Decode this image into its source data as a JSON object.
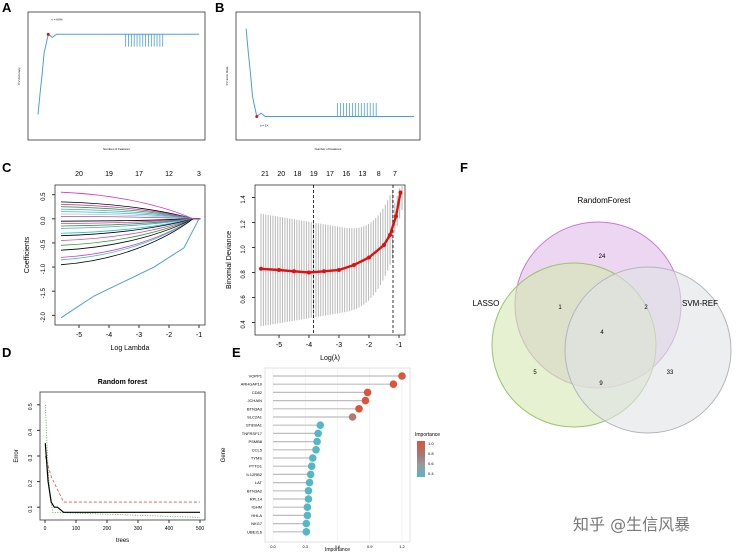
{
  "panels": {
    "A": "A",
    "B": "B",
    "C": "C",
    "D": "D",
    "E": "E",
    "F": "F"
  },
  "panel_A": {
    "min_label": "n = 6X%",
    "xlabel": "Number of Features",
    "ylabel": "CV Accuracy"
  },
  "panel_B": {
    "min_label": "n = 1X",
    "xlabel": "Number of Features",
    "ylabel": "CV Error Rate"
  },
  "panel_C1": {
    "xlabel": "Log Lambda",
    "ylabel": "Coefficients",
    "xticks": [
      "-5",
      "-4",
      "-3",
      "-2",
      "-1"
    ],
    "yticks": [
      "0.5",
      "0.0",
      "-0.5",
      "-1.0",
      "-1.5",
      "-2.0"
    ],
    "top_counts": [
      "20",
      "19",
      "17",
      "12",
      "3"
    ]
  },
  "panel_C2": {
    "xlabel": "Log(λ)",
    "ylabel": "Binomial Deviance",
    "xticks": [
      "-5",
      "-4",
      "-3",
      "-2",
      "-1"
    ],
    "yticks": [
      "1.4",
      "1.2",
      "1.0",
      "0.8",
      "0.6",
      "0.4"
    ],
    "top_counts": [
      "21",
      "20",
      "18",
      "19",
      "17",
      "16",
      "13",
      "8",
      "7"
    ]
  },
  "panel_D": {
    "title": "Random forest",
    "xlabel": "trees",
    "ylabel": "Error",
    "xticks": [
      "0",
      "100",
      "200",
      "300",
      "400",
      "500"
    ],
    "yticks": [
      "0.5",
      "0.4",
      "0.3",
      "0.2",
      "0.1"
    ]
  },
  "panel_E": {
    "xlabel": "Importance",
    "ylabel": "Gene",
    "legend_title": "Importance",
    "xticks": [
      "0.0",
      "0.3",
      "0.6",
      "0.9",
      "1.2"
    ],
    "legend_values": [
      "1.0",
      "0.8",
      "0.6",
      "0.4"
    ]
  },
  "panel_F": {
    "set_labels": [
      "RandomForest",
      "LASSO",
      "SVM-REF"
    ]
  },
  "colors": {
    "blue": "#4a9fd6",
    "red": "#e01010",
    "green": "#d4e8b0",
    "purple": "#e6c8ec",
    "gray": "#dfe3e6",
    "dot_red": "#d9553b",
    "dot_teal": "#55b6c6"
  },
  "chart_data": [
    {
      "type": "line",
      "panel": "A",
      "xlim": [
        0,
        80
      ],
      "series": [
        {
          "x": [
            1,
            2,
            3,
            4,
            5,
            6,
            8,
            10,
            15,
            20,
            30,
            40,
            50,
            60,
            80
          ],
          "y": [
            0.55,
            0.62,
            0.68,
            0.75,
            0.78,
            0.81,
            0.8,
            0.81,
            0.81,
            0.81,
            0.81,
            0.81,
            0.81,
            0.81,
            0.81
          ]
        }
      ]
    },
    {
      "type": "line",
      "panel": "B",
      "xlim": [
        0,
        80
      ],
      "series": [
        {
          "x": [
            1,
            2,
            3,
            4,
            5,
            6,
            8,
            10,
            15,
            20,
            30,
            40,
            50,
            60,
            80
          ],
          "y": [
            0.45,
            0.38,
            0.32,
            0.25,
            0.22,
            0.19,
            0.2,
            0.19,
            0.19,
            0.19,
            0.19,
            0.19,
            0.19,
            0.19,
            0.19
          ]
        }
      ]
    },
    {
      "type": "line",
      "panel": "C1",
      "xlabel": "Log Lambda",
      "ylabel": "Coefficients",
      "xlim": [
        -5.8,
        -0.8
      ],
      "ylim": [
        -2.2,
        0.7
      ],
      "series_count": 21,
      "example_series": {
        "x": [
          -5.6,
          -4.5,
          -3.5,
          -2.5,
          -1.5,
          -1.0
        ],
        "y": [
          -2.05,
          -1.6,
          -1.3,
          -1.0,
          -0.6,
          0.0
        ]
      }
    },
    {
      "type": "scatter",
      "panel": "C2",
      "xlabel": "Log(λ)",
      "ylabel": "Binomial Deviance",
      "xlim": [
        -5.8,
        -0.8
      ],
      "ylim": [
        0.3,
        1.5
      ],
      "x": [
        -5.6,
        -5.0,
        -4.5,
        -4.0,
        -3.5,
        -3.0,
        -2.5,
        -2.0,
        -1.5,
        -1.3,
        -1.1,
        -0.95
      ],
      "y": [
        0.83,
        0.82,
        0.81,
        0.8,
        0.81,
        0.82,
        0.86,
        0.92,
        1.02,
        1.1,
        1.25,
        1.44
      ],
      "vlines": [
        -3.85,
        -1.2
      ]
    },
    {
      "type": "line",
      "panel": "D",
      "title": "Random forest",
      "xlabel": "trees",
      "ylabel": "Error",
      "xlim": [
        0,
        500
      ],
      "ylim": [
        0.05,
        0.55
      ],
      "series": [
        {
          "name": "OOB",
          "x": [
            1,
            10,
            20,
            30,
            40,
            60,
            100,
            200,
            300,
            400,
            500
          ],
          "y": [
            0.35,
            0.2,
            0.12,
            0.1,
            0.1,
            0.08,
            0.08,
            0.08,
            0.08,
            0.08,
            0.08
          ]
        }
      ]
    },
    {
      "type": "bar",
      "panel": "E",
      "xlabel": "Importance",
      "categories": [
        "VOPP1",
        "ARHGAP10",
        "CD82",
        "JCHAIN",
        "BTN3A3",
        "SLC2A1",
        "ST8SIA1",
        "TNFRSF17",
        "PSMB8",
        "CCL5",
        "TYMS",
        "PTTG1",
        "IL12RB2",
        "LAT",
        "BTN3A2",
        "RPL14",
        "IGHM",
        "HHLA",
        "NKG7",
        "UBE2L6"
      ],
      "values": [
        1.2,
        1.12,
        0.88,
        0.86,
        0.8,
        0.74,
        0.44,
        0.42,
        0.41,
        0.4,
        0.37,
        0.36,
        0.35,
        0.34,
        0.33,
        0.33,
        0.32,
        0.32,
        0.31,
        0.31
      ]
    },
    {
      "type": "table",
      "panel": "F",
      "venn": {
        "RandomForest_only": 24,
        "LASSO_only": 5,
        "SVM-REF_only": 33,
        "RF_LASSO": 1,
        "RF_SVM": 2,
        "LASSO_SVM": 9,
        "all": 4
      }
    }
  ]
}
